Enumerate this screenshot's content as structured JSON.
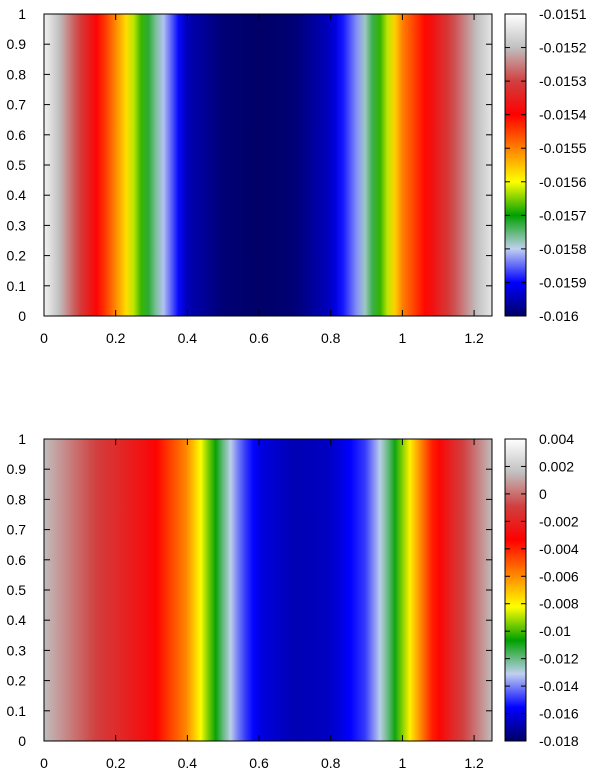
{
  "chart_data": [
    {
      "type": "heatmap",
      "title": "",
      "xlabel": "",
      "ylabel": "",
      "xlim": [
        0,
        1.25
      ],
      "ylim": [
        0,
        1
      ],
      "x_ticks": [
        "0",
        "0.2",
        "0.4",
        "0.6",
        "0.8",
        "1",
        "1.2"
      ],
      "y_ticks": [
        "0",
        "0.1",
        "0.2",
        "0.3",
        "0.4",
        "0.5",
        "0.6",
        "0.7",
        "0.8",
        "0.9",
        "1"
      ],
      "colorbar": {
        "range": [
          -0.016,
          -0.0151
        ],
        "ticks": [
          "-0.0151",
          "-0.0152",
          "-0.0153",
          "-0.0154",
          "-0.0155",
          "-0.0156",
          "-0.0157",
          "-0.0158",
          "-0.0159",
          "-0.016"
        ]
      },
      "field_profile": {
        "x": [
          0.0,
          0.15,
          0.22,
          0.28,
          0.34,
          0.4,
          0.5,
          0.6,
          0.7,
          0.8,
          0.88,
          0.95,
          1.0,
          1.1,
          1.25
        ],
        "value": [
          -0.01512,
          -0.0154,
          -0.01555,
          -0.0157,
          -0.01582,
          -0.01595,
          -0.01599,
          -0.016,
          -0.01599,
          -0.01594,
          -0.01582,
          -0.01565,
          -0.0155,
          -0.01535,
          -0.01514
        ]
      }
    },
    {
      "type": "heatmap",
      "title": "",
      "xlabel": "",
      "ylabel": "",
      "xlim": [
        0,
        1.25
      ],
      "ylim": [
        0,
        1
      ],
      "x_ticks": [
        "0",
        "0.2",
        "0.4",
        "0.6",
        "0.8",
        "1",
        "1.2"
      ],
      "y_ticks": [
        "0",
        "0.1",
        "0.2",
        "0.3",
        "0.4",
        "0.5",
        "0.6",
        "0.7",
        "0.8",
        "0.9",
        "1"
      ],
      "colorbar": {
        "range": [
          -0.018,
          0.004
        ],
        "ticks": [
          "0.004",
          "0.002",
          "0",
          "-0.002",
          "-0.004",
          "-0.006",
          "-0.008",
          "-0.01",
          "-0.012",
          "-0.014",
          "-0.016",
          "-0.018"
        ]
      },
      "field_profile": {
        "x": [
          0.0,
          0.15,
          0.3,
          0.4,
          0.45,
          0.5,
          0.55,
          0.6,
          0.7,
          0.8,
          0.9,
          0.97,
          1.02,
          1.08,
          1.15,
          1.25
        ],
        "value": [
          0.0015,
          -0.001,
          -0.003,
          -0.006,
          -0.009,
          -0.012,
          -0.0145,
          -0.016,
          -0.0168,
          -0.0165,
          -0.0148,
          -0.0115,
          -0.008,
          -0.004,
          -0.0015,
          0.0015
        ]
      }
    }
  ],
  "colors": {
    "scale": [
      "#000066",
      "#0000ff",
      "#c0d0f0",
      "#00a000",
      "#ffff00",
      "#ff8000",
      "#ff0000",
      "#d04040",
      "#c0c0c0",
      "#ffffff"
    ]
  }
}
